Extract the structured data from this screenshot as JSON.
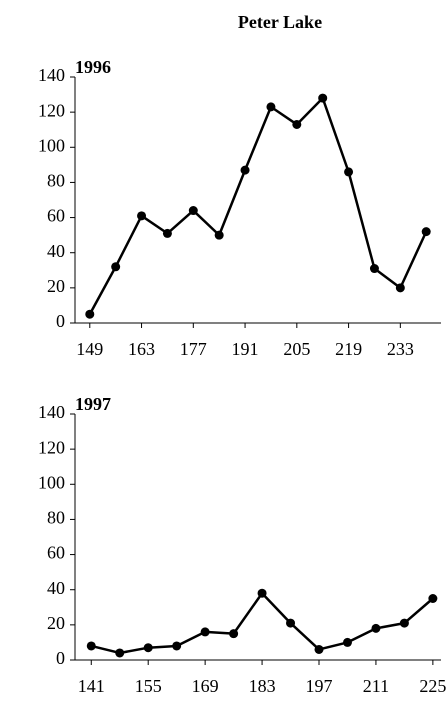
{
  "title": "Peter Lake",
  "chart_data": [
    {
      "type": "line",
      "title": "1996",
      "x": [
        149,
        156,
        163,
        170,
        177,
        184,
        191,
        198,
        205,
        212,
        219,
        226,
        233,
        240
      ],
      "series": [
        {
          "color": "#000000",
          "values": [
            5,
            32,
            61,
            51,
            64,
            50,
            87,
            123,
            113,
            128,
            86,
            31,
            20,
            52
          ]
        }
      ],
      "xlim": [
        145,
        244
      ],
      "xticks": [
        149,
        163,
        177,
        191,
        205,
        219,
        233
      ],
      "ylim": [
        0,
        140
      ],
      "yticks": [
        0,
        20,
        40,
        60,
        80,
        100,
        120,
        140
      ]
    },
    {
      "type": "line",
      "title": "1997",
      "x": [
        141,
        148,
        155,
        162,
        169,
        176,
        183,
        190,
        197,
        204,
        211,
        218,
        225
      ],
      "series": [
        {
          "color": "#000000",
          "values": [
            8,
            4,
            7,
            8,
            16,
            15,
            38,
            21,
            6,
            10,
            18,
            21,
            35
          ]
        }
      ],
      "xlim": [
        137,
        227
      ],
      "xticks": [
        141,
        155,
        169,
        183,
        197,
        211,
        225
      ],
      "ylim": [
        0,
        140
      ],
      "yticks": [
        0,
        20,
        40,
        60,
        80,
        100,
        120,
        140
      ]
    }
  ]
}
